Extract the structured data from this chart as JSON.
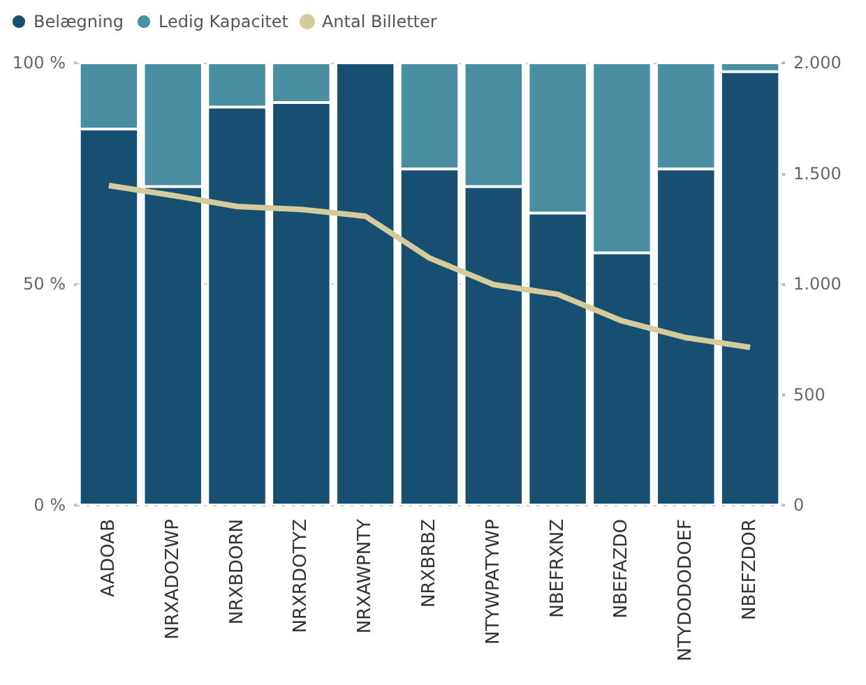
{
  "chart_data": {
    "type": "bar",
    "stacked": true,
    "categories": [
      "AADOAB",
      "NRXADOZWP",
      "NRXBDORN",
      "NRXRDOTYZ",
      "NRXAWPNTY",
      "NRXBRBZ",
      "NTYWPATYWP",
      "NBEFRXNZ",
      "NBEFAZDO",
      "NTYDODODOEF",
      "NBEFZDOR"
    ],
    "series": [
      {
        "name": "Belægning",
        "color": "#174f73",
        "values": [
          85,
          72,
          90,
          91,
          100,
          76,
          72,
          66,
          57,
          76,
          98
        ]
      },
      {
        "name": "Ledig Kapacitet",
        "color": "#4a8fa1",
        "values": [
          15,
          28,
          10,
          9,
          0,
          24,
          28,
          34,
          43,
          24,
          2
        ]
      },
      {
        "name": "Antal Billetter",
        "type": "line",
        "axis": "y2",
        "color": "#d6cb9c",
        "values": [
          1445,
          1400,
          1350,
          1337,
          1306,
          1117,
          997,
          953,
          833,
          757,
          713
        ]
      }
    ],
    "ylim": [
      0,
      100
    ],
    "yticks": [
      {
        "value": 0,
        "label": "0 %"
      },
      {
        "value": 50,
        "label": "50 %"
      },
      {
        "value": 100,
        "label": "100 %"
      }
    ],
    "y2lim": [
      0,
      2000
    ],
    "y2ticks": [
      0,
      500,
      {
        "value": 1000,
        "label": "1.000"
      },
      {
        "value": 1500,
        "label": "1.500"
      },
      {
        "value": 2000,
        "label": "2.000"
      }
    ],
    "grid": "y",
    "legend": "top left"
  }
}
